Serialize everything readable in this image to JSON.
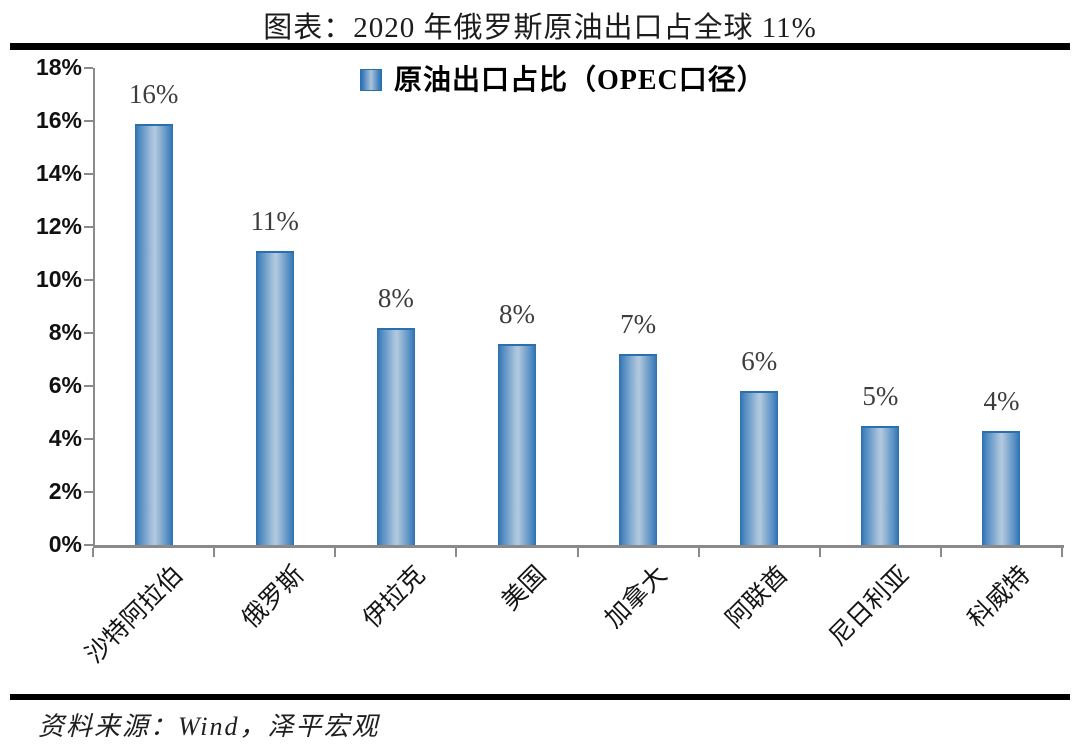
{
  "title": "图表：2020 年俄罗斯原油出口占全球 11%",
  "legend": {
    "label": "原油出口占比（OPEC口径）",
    "swatch_icon": "bar-series-swatch"
  },
  "source": "资料来源：Wind，泽平宏观",
  "colors": {
    "bar_edge": "#2b70af",
    "bar_center": "#abc4dc",
    "axis": "#8a8a8a",
    "rule": "#000000",
    "data_label": "#3d3d3d"
  },
  "chart_data": {
    "type": "bar",
    "title": "图表：2020 年俄罗斯原油出口占全球 11%",
    "legend_entries": [
      "原油出口占比（OPEC口径）"
    ],
    "legend_position": "top-center",
    "categories": [
      "沙特阿拉伯",
      "俄罗斯",
      "伊拉克",
      "美国",
      "加拿大",
      "阿联酋",
      "尼日利亚",
      "科威特"
    ],
    "values": [
      15.9,
      11.1,
      8.2,
      7.6,
      7.2,
      5.8,
      4.5,
      4.3
    ],
    "data_labels": [
      "16%",
      "11%",
      "8%",
      "8%",
      "7%",
      "6%",
      "5%",
      "4%"
    ],
    "xlabel": "",
    "ylabel": "",
    "ylim": [
      0,
      18
    ],
    "ytick_step": 2,
    "ytick_labels": [
      "0%",
      "2%",
      "4%",
      "6%",
      "8%",
      "10%",
      "12%",
      "14%",
      "16%",
      "18%"
    ],
    "grid": false
  }
}
